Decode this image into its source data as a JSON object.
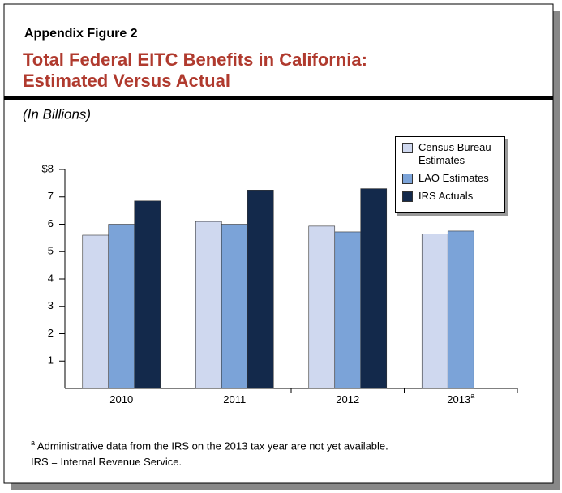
{
  "chart_data": {
    "type": "bar",
    "figure_label": "Appendix Figure 2",
    "title": [
      "Total Federal EITC Benefits in California:",
      "Estimated Versus Actual"
    ],
    "subtitle": "(In Billions)",
    "categories": [
      "2010",
      "2011",
      "2012",
      "2013"
    ],
    "category_marks": [
      null,
      null,
      null,
      "a"
    ],
    "series": [
      {
        "name": "Census Bureau Estimates",
        "color": "#cfd8ef",
        "values": [
          5.6,
          6.1,
          5.93,
          5.65
        ]
      },
      {
        "name": "LAO Estimates",
        "color": "#7ba3d8",
        "values": [
          6.0,
          6.0,
          5.72,
          5.75
        ]
      },
      {
        "name": "IRS Actuals",
        "color": "#13294b",
        "values": [
          6.85,
          7.25,
          7.3,
          null
        ]
      }
    ],
    "ylim": [
      0,
      8
    ],
    "yticks": [
      1,
      2,
      3,
      4,
      5,
      6,
      7,
      {
        "value": 8,
        "label": "$8"
      }
    ],
    "legend": "top right",
    "footnote_marker": "a",
    "footnotes": [
      "Administrative data from the IRS on the 2013 tax year are not yet available.",
      "IRS = Internal Revenue Service."
    ]
  }
}
